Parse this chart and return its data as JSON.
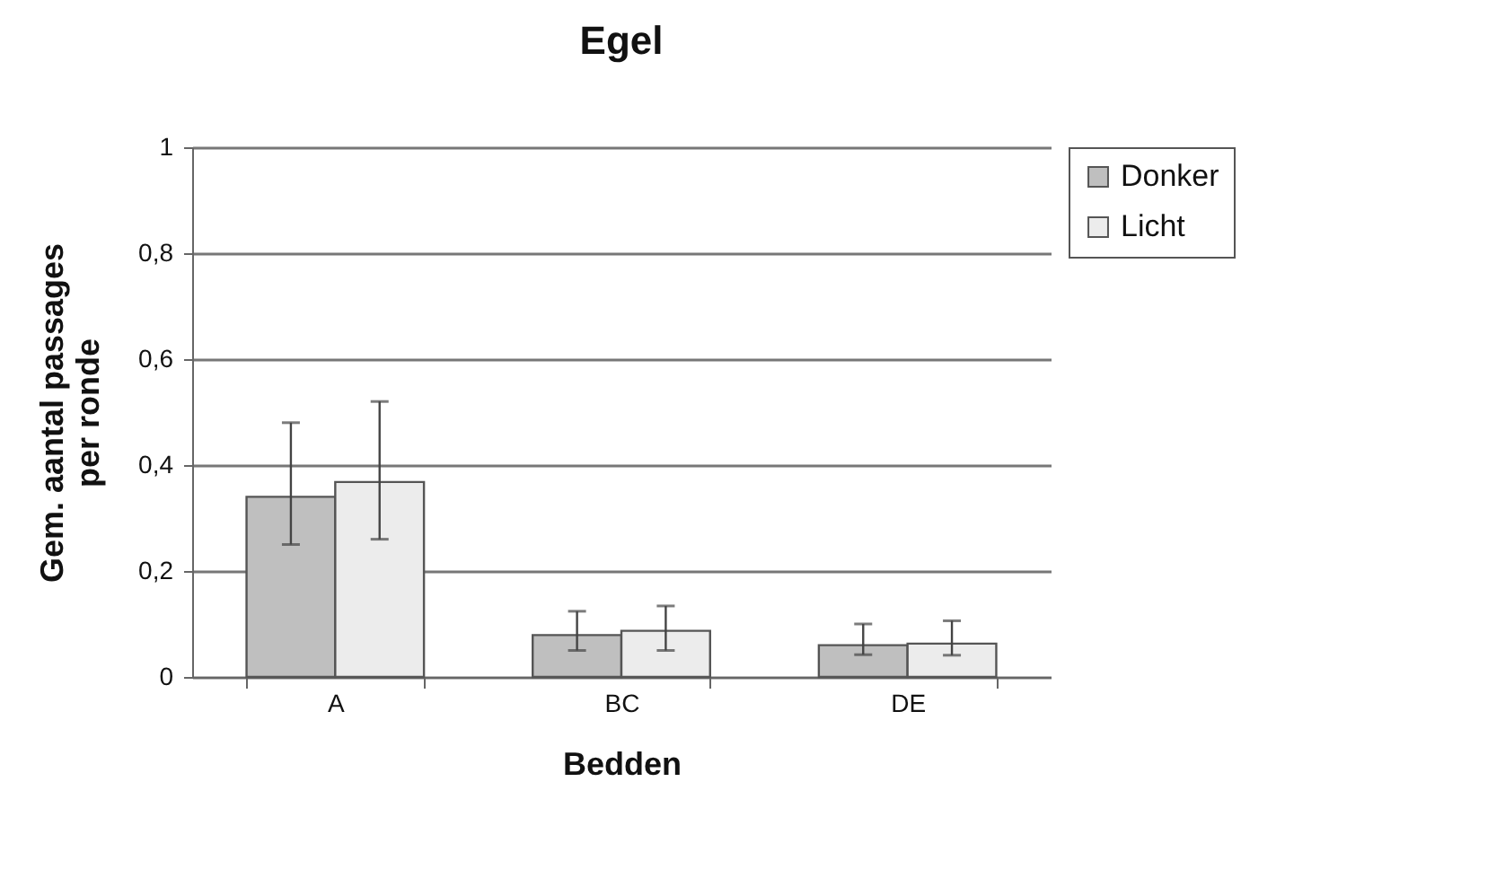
{
  "chart_data": {
    "type": "bar",
    "title": "Egel",
    "xlabel": "Bedden",
    "ylabel": "Gem. aantal passages per ronde",
    "categories": [
      "A",
      "BC",
      "DE"
    ],
    "series": [
      {
        "name": "Donker",
        "color": "#bfbfbf",
        "values": [
          0.34,
          0.079,
          0.06
        ],
        "errors": [
          [
            0.25,
            0.48
          ],
          [
            0.05,
            0.124
          ],
          [
            0.042,
            0.1
          ]
        ]
      },
      {
        "name": "Licht",
        "color": "#ececec",
        "values": [
          0.368,
          0.087,
          0.063
        ],
        "errors": [
          [
            0.26,
            0.52
          ],
          [
            0.05,
            0.134
          ],
          [
            0.041,
            0.106
          ]
        ]
      }
    ],
    "ylim": [
      0,
      1
    ],
    "yticks": [
      0,
      {
        "value": 0.2,
        "label": "0,2"
      },
      {
        "value": 0.4,
        "label": "0,4"
      },
      {
        "value": 0.6,
        "label": "0,6"
      },
      {
        "value": 0.8,
        "label": "0,8"
      },
      1
    ],
    "grid": "y",
    "legend": "right"
  }
}
